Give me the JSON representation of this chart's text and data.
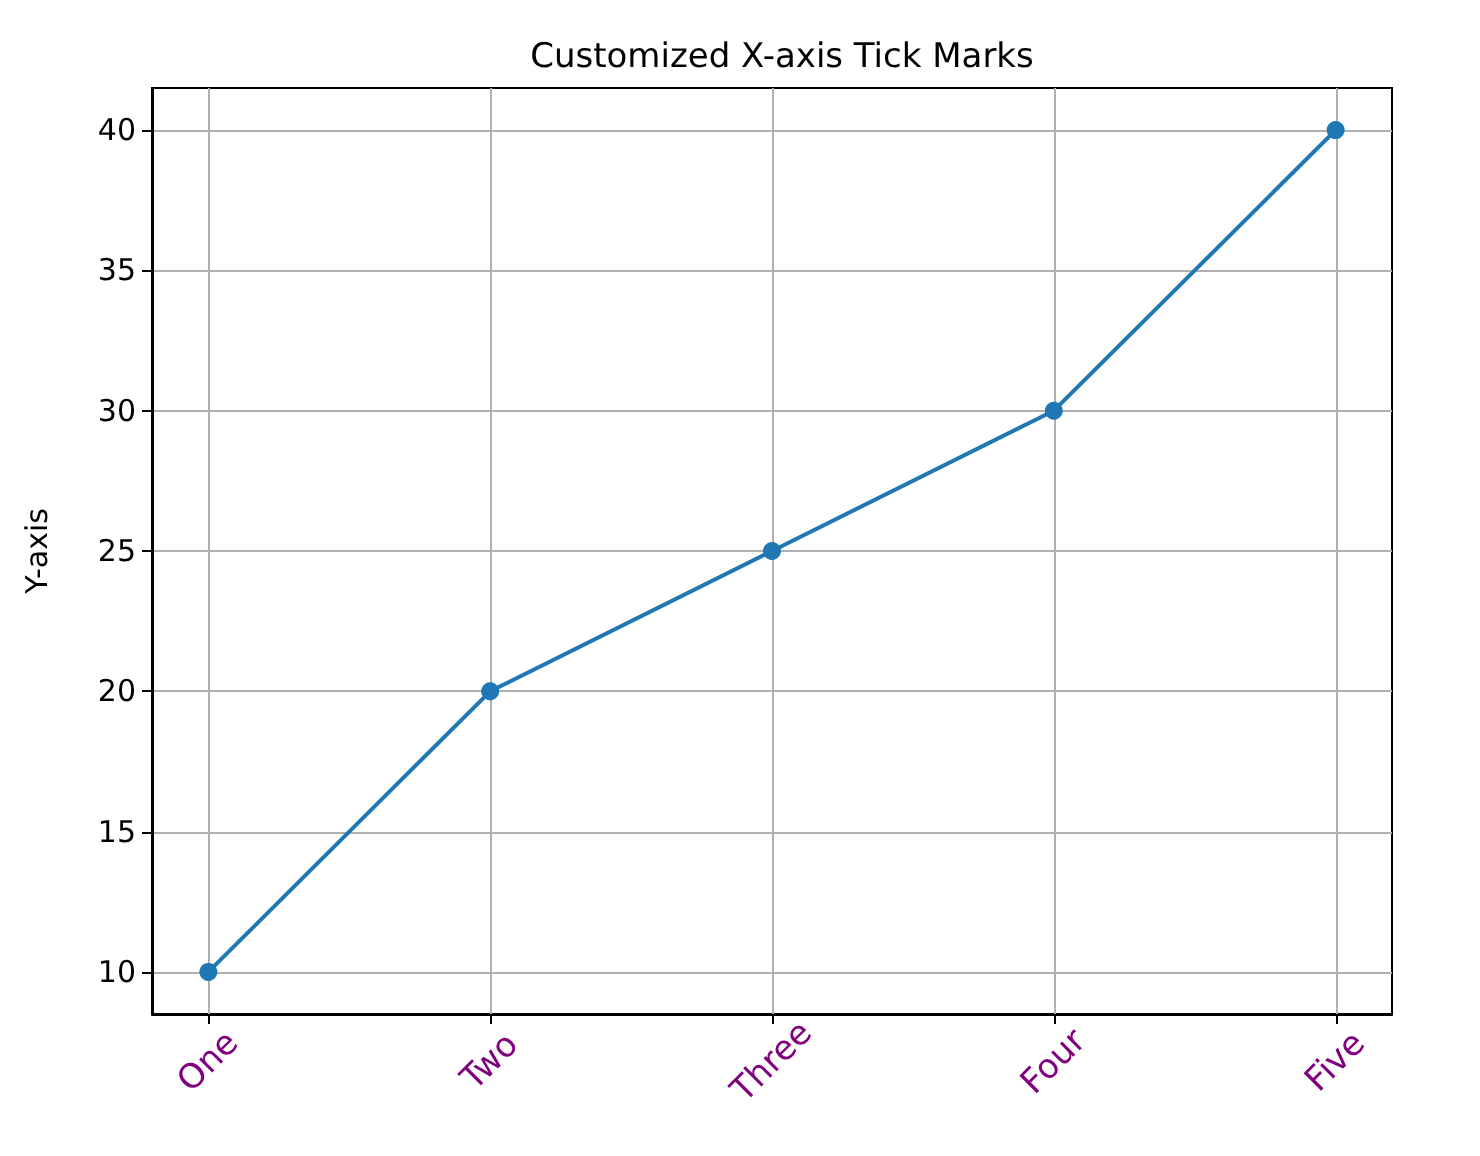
{
  "chart_data": {
    "type": "line",
    "title": "Customized X-axis Tick Marks",
    "ylabel": "Y-axis",
    "categories": [
      "One",
      "Two",
      "Three",
      "Four",
      "Five"
    ],
    "series": [
      {
        "color": "#1f77b4",
        "values": [
          10,
          20,
          25,
          30,
          40
        ]
      }
    ],
    "ylim": [
      8.5,
      41.5
    ],
    "yticks": [
      10,
      15,
      20,
      25,
      30,
      35,
      40
    ],
    "grid": true,
    "marker": "circle",
    "line_style": "solid"
  }
}
